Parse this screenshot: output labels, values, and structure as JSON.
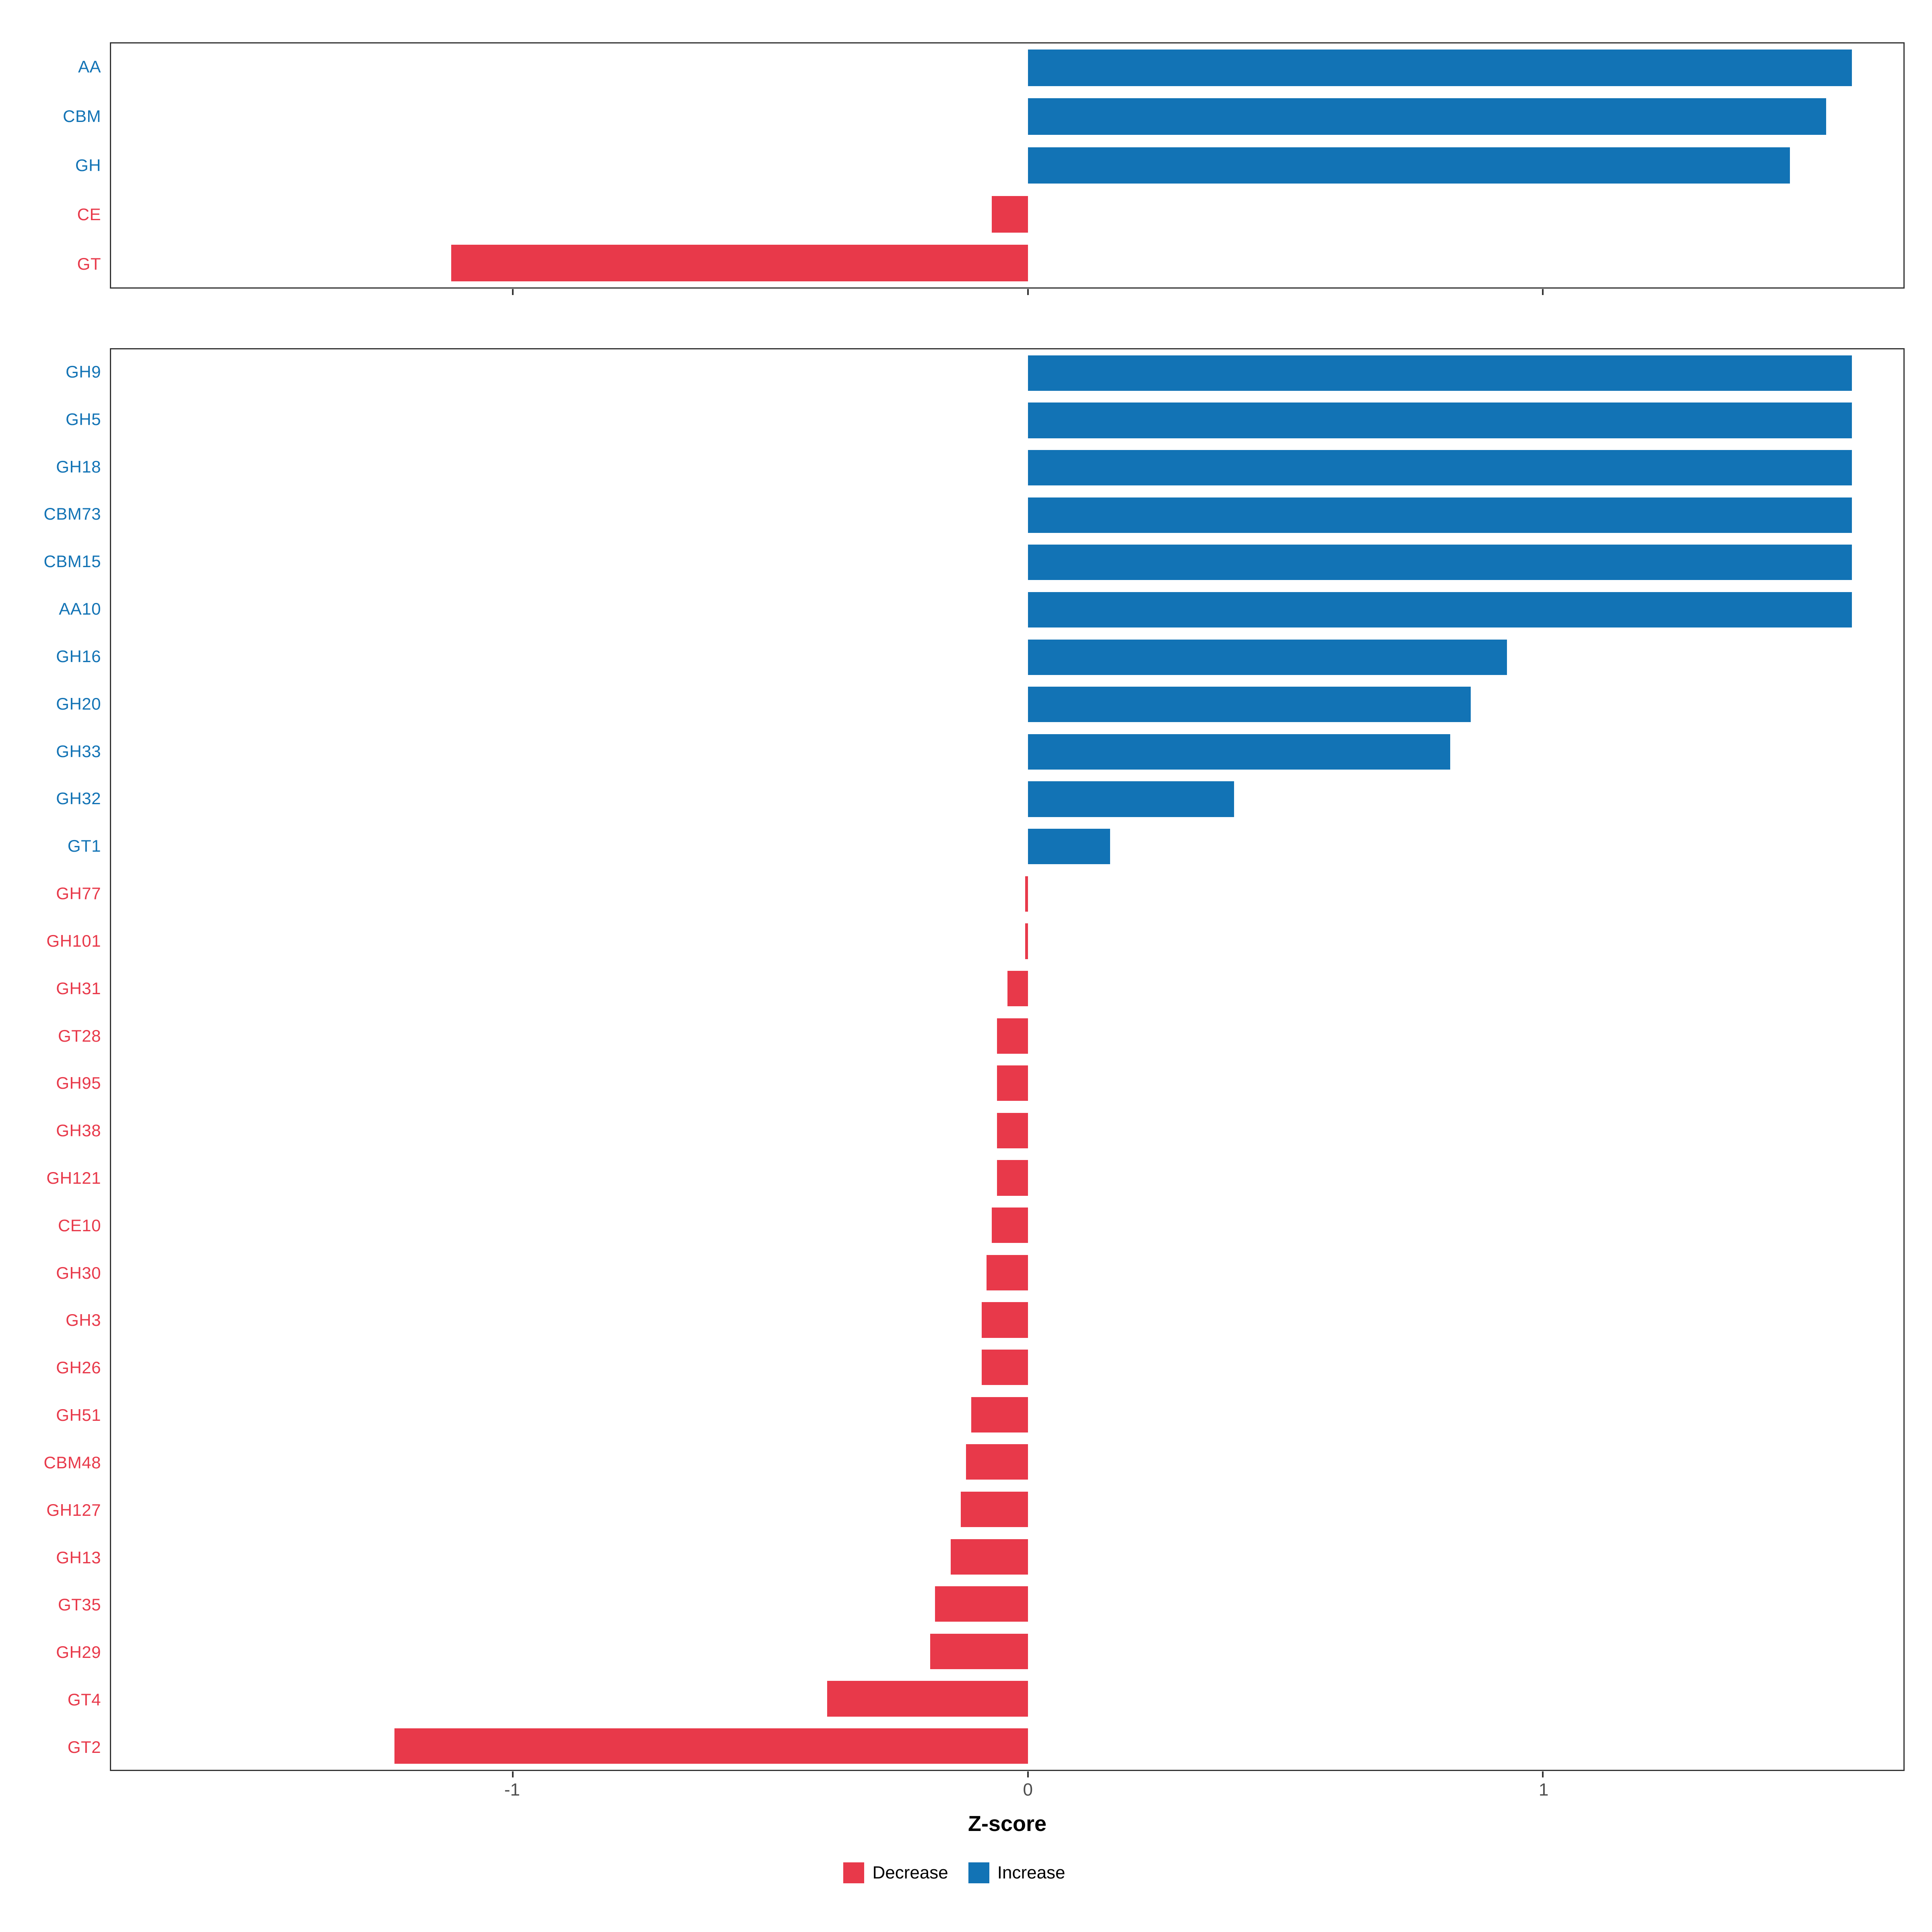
{
  "figure": {
    "xlabel": "Z-score",
    "x_ticks": [
      "-1",
      "0",
      "1"
    ],
    "x_tick_values": [
      -1,
      0,
      1
    ],
    "xlim": [
      -1.78,
      1.7
    ],
    "colors": {
      "decrease": "#E8394A",
      "increase": "#1273B5"
    },
    "legend": [
      {
        "label": "Decrease",
        "key": "decrease"
      },
      {
        "label": "Increase",
        "key": "increase"
      }
    ]
  },
  "chart_data": [
    {
      "type": "bar",
      "orientation": "horizontal",
      "panel": "top",
      "title": "",
      "xlabel": "Z-score",
      "ylabel": "",
      "xlim": [
        -1.78,
        1.7
      ],
      "grid": false,
      "legend_position": "bottom",
      "categories": [
        "AA",
        "CBM",
        "GH",
        "CE",
        "GT"
      ],
      "values": [
        1.6,
        1.55,
        1.48,
        -0.07,
        -1.12
      ]
    },
    {
      "type": "bar",
      "orientation": "horizontal",
      "panel": "bottom",
      "title": "",
      "xlabel": "Z-score",
      "ylabel": "",
      "xlim": [
        -1.78,
        1.7
      ],
      "grid": false,
      "legend_position": "bottom",
      "categories": [
        "GH9",
        "GH5",
        "GH18",
        "CBM73",
        "CBM15",
        "AA10",
        "GH16",
        "GH20",
        "GH33",
        "GH32",
        "GT1",
        "GH77",
        "GH101",
        "GH31",
        "GT28",
        "GH95",
        "GH38",
        "GH121",
        "CE10",
        "GH30",
        "GH3",
        "GH26",
        "GH51",
        "CBM48",
        "GH127",
        "GH13",
        "GT35",
        "GH29",
        "GT4",
        "GT2"
      ],
      "values": [
        1.6,
        1.6,
        1.6,
        1.6,
        1.6,
        1.6,
        0.93,
        0.86,
        0.82,
        0.4,
        0.16,
        -0.005,
        -0.005,
        -0.04,
        -0.06,
        -0.06,
        -0.06,
        -0.06,
        -0.07,
        -0.08,
        -0.09,
        -0.09,
        -0.11,
        -0.12,
        -0.13,
        -0.15,
        -0.18,
        -0.19,
        -0.39,
        -1.23
      ]
    }
  ]
}
